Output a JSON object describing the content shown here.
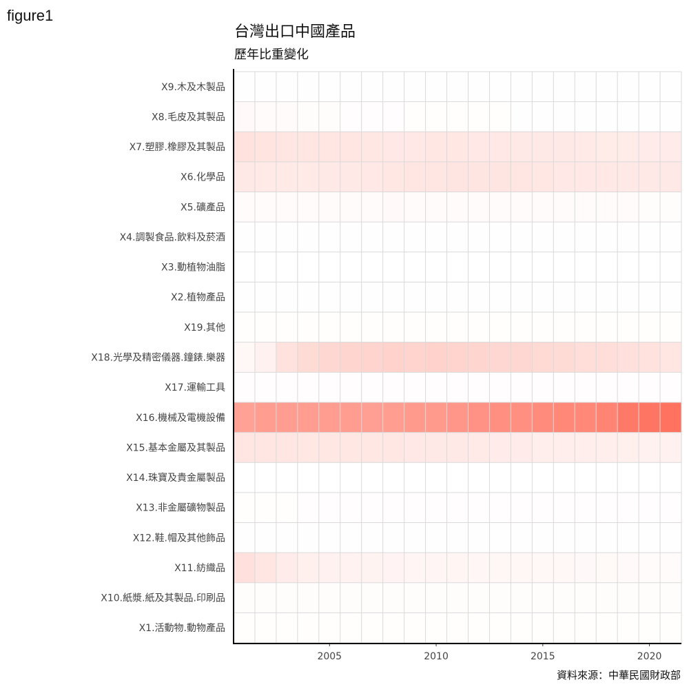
{
  "figure_label": "figure1",
  "chart_data": {
    "type": "heatmap",
    "title": "台灣出口中國產品",
    "subtitle": "歷年比重變化",
    "caption": "資料來源：中華民國財政部",
    "xlabel": "",
    "ylabel": "",
    "x": [
      2001,
      2002,
      2003,
      2004,
      2005,
      2006,
      2007,
      2008,
      2009,
      2010,
      2011,
      2012,
      2013,
      2014,
      2015,
      2016,
      2017,
      2018,
      2019,
      2020,
      2021
    ],
    "xlim": [
      2000.5,
      2021.5
    ],
    "x_ticks": [
      2005,
      2010,
      2015,
      2020
    ],
    "grid": true,
    "colors": {
      "low": "#ffffff",
      "high": "#ff4a33",
      "grid": "#d9d9d9",
      "axis": "#000000"
    },
    "value_range": [
      0,
      0.5
    ],
    "categories": [
      "X9.木及木製品",
      "X8.毛皮及其製品",
      "X7.塑膠.橡膠及其製品",
      "X6.化學品",
      "X5.礦產品",
      "X4.調製食品.飲料及菸酒",
      "X3.動植物油脂",
      "X2.植物產品",
      "X19.其他",
      "X18.光學及精密儀器.鐘錶.樂器",
      "X17.運輸工具",
      "X16.機械及電機設備",
      "X15.基本金屬及其製品",
      "X14.珠寶及貴金屬製品",
      "X13.非金屬礦物製品",
      "X12.鞋.帽及其他飾品",
      "X11.紡織品",
      "X10.紙漿.紙及其製品.印刷品",
      "X1.活動物.動物產品"
    ],
    "values": [
      [
        0.002,
        0.002,
        0.002,
        0.002,
        0.002,
        0.002,
        0.002,
        0.002,
        0.002,
        0.002,
        0.002,
        0.002,
        0.002,
        0.002,
        0.002,
        0.002,
        0.002,
        0.002,
        0.002,
        0.002,
        0.002
      ],
      [
        0.015,
        0.012,
        0.01,
        0.008,
        0.007,
        0.006,
        0.005,
        0.005,
        0.004,
        0.004,
        0.004,
        0.004,
        0.004,
        0.003,
        0.003,
        0.003,
        0.003,
        0.003,
        0.003,
        0.003,
        0.003
      ],
      [
        0.08,
        0.075,
        0.07,
        0.07,
        0.07,
        0.068,
        0.066,
        0.064,
        0.064,
        0.066,
        0.066,
        0.064,
        0.064,
        0.062,
        0.06,
        0.06,
        0.058,
        0.056,
        0.056,
        0.054,
        0.052
      ],
      [
        0.06,
        0.058,
        0.058,
        0.058,
        0.06,
        0.062,
        0.064,
        0.066,
        0.068,
        0.07,
        0.072,
        0.072,
        0.072,
        0.07,
        0.066,
        0.064,
        0.064,
        0.064,
        0.062,
        0.06,
        0.06
      ],
      [
        0.01,
        0.01,
        0.01,
        0.012,
        0.012,
        0.012,
        0.012,
        0.014,
        0.012,
        0.012,
        0.012,
        0.012,
        0.012,
        0.012,
        0.01,
        0.01,
        0.01,
        0.01,
        0.01,
        0.008,
        0.008
      ],
      [
        0.002,
        0.002,
        0.002,
        0.002,
        0.002,
        0.002,
        0.002,
        0.002,
        0.002,
        0.002,
        0.002,
        0.002,
        0.002,
        0.002,
        0.002,
        0.002,
        0.002,
        0.002,
        0.002,
        0.002,
        0.002
      ],
      [
        0.001,
        0.001,
        0.001,
        0.001,
        0.001,
        0.001,
        0.001,
        0.001,
        0.001,
        0.001,
        0.001,
        0.001,
        0.001,
        0.001,
        0.001,
        0.001,
        0.001,
        0.001,
        0.001,
        0.001,
        0.001
      ],
      [
        0.003,
        0.003,
        0.003,
        0.003,
        0.003,
        0.003,
        0.003,
        0.003,
        0.003,
        0.003,
        0.003,
        0.003,
        0.003,
        0.003,
        0.003,
        0.003,
        0.003,
        0.003,
        0.003,
        0.003,
        0.003
      ],
      [
        0.004,
        0.004,
        0.004,
        0.004,
        0.004,
        0.004,
        0.004,
        0.004,
        0.004,
        0.004,
        0.004,
        0.004,
        0.004,
        0.004,
        0.004,
        0.004,
        0.004,
        0.004,
        0.004,
        0.004,
        0.004
      ],
      [
        0.02,
        0.04,
        0.08,
        0.1,
        0.11,
        0.115,
        0.12,
        0.125,
        0.12,
        0.125,
        0.12,
        0.115,
        0.11,
        0.11,
        0.105,
        0.1,
        0.095,
        0.09,
        0.085,
        0.08,
        0.07
      ],
      [
        0.005,
        0.005,
        0.005,
        0.005,
        0.005,
        0.005,
        0.005,
        0.005,
        0.005,
        0.005,
        0.005,
        0.005,
        0.005,
        0.005,
        0.005,
        0.005,
        0.005,
        0.006,
        0.006,
        0.006,
        0.006
      ],
      [
        0.26,
        0.27,
        0.27,
        0.27,
        0.27,
        0.27,
        0.265,
        0.27,
        0.28,
        0.28,
        0.29,
        0.3,
        0.31,
        0.31,
        0.32,
        0.33,
        0.33,
        0.34,
        0.37,
        0.38,
        0.39
      ],
      [
        0.07,
        0.068,
        0.068,
        0.066,
        0.066,
        0.066,
        0.066,
        0.066,
        0.064,
        0.062,
        0.062,
        0.058,
        0.054,
        0.052,
        0.048,
        0.046,
        0.046,
        0.046,
        0.044,
        0.04,
        0.04
      ],
      [
        0.001,
        0.001,
        0.001,
        0.001,
        0.001,
        0.001,
        0.001,
        0.001,
        0.001,
        0.001,
        0.001,
        0.001,
        0.001,
        0.001,
        0.001,
        0.001,
        0.001,
        0.001,
        0.001,
        0.001,
        0.001
      ],
      [
        0.004,
        0.004,
        0.004,
        0.005,
        0.005,
        0.005,
        0.005,
        0.005,
        0.005,
        0.005,
        0.005,
        0.005,
        0.005,
        0.005,
        0.005,
        0.005,
        0.005,
        0.005,
        0.005,
        0.005,
        0.005
      ],
      [
        0.002,
        0.002,
        0.002,
        0.002,
        0.002,
        0.002,
        0.002,
        0.002,
        0.002,
        0.002,
        0.002,
        0.002,
        0.002,
        0.002,
        0.002,
        0.002,
        0.002,
        0.002,
        0.002,
        0.002,
        0.002
      ],
      [
        0.085,
        0.07,
        0.055,
        0.045,
        0.04,
        0.036,
        0.032,
        0.03,
        0.028,
        0.027,
        0.026,
        0.024,
        0.022,
        0.021,
        0.02,
        0.019,
        0.018,
        0.016,
        0.014,
        0.012,
        0.01
      ],
      [
        0.008,
        0.008,
        0.008,
        0.008,
        0.008,
        0.008,
        0.008,
        0.008,
        0.008,
        0.008,
        0.007,
        0.007,
        0.007,
        0.007,
        0.007,
        0.007,
        0.007,
        0.007,
        0.007,
        0.007,
        0.007
      ],
      [
        0.004,
        0.004,
        0.004,
        0.004,
        0.004,
        0.004,
        0.004,
        0.004,
        0.004,
        0.004,
        0.004,
        0.004,
        0.004,
        0.004,
        0.004,
        0.004,
        0.004,
        0.004,
        0.004,
        0.004,
        0.004
      ]
    ]
  }
}
